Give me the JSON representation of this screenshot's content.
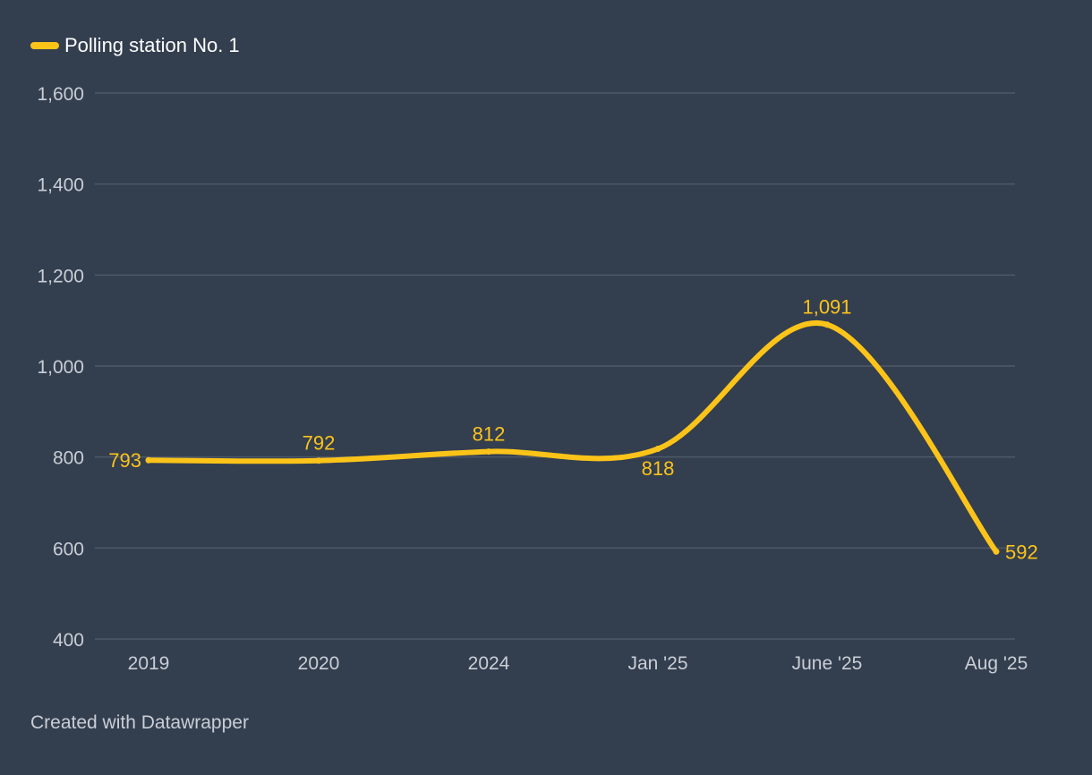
{
  "footer_text": "Created with Datawrapper",
  "colors": {
    "background": "#333e4f",
    "line": "#fcc419",
    "gridline": "#4e5869",
    "axis_text": "#c9ced6",
    "legend_text": "#ffffff"
  },
  "chart_data": {
    "type": "line",
    "title": "",
    "xlabel": "",
    "ylabel": "",
    "categories": [
      "2019",
      "2020",
      "2024",
      "Jan '25",
      "June '25",
      "Aug '25"
    ],
    "ylim": [
      400,
      1600
    ],
    "yticks": [
      400,
      600,
      800,
      1000,
      1200,
      1400,
      1600
    ],
    "ytick_labels": [
      "400",
      "600",
      "800",
      "1,000",
      "1,200",
      "1,400",
      "1,600"
    ],
    "grid": true,
    "legend_position": "top-left",
    "series": [
      {
        "name": "Polling station No. 1",
        "values": [
          793,
          792,
          812,
          818,
          1091,
          592
        ],
        "labels": [
          "793",
          "792",
          "812",
          "818",
          "1,091",
          "592"
        ]
      }
    ]
  }
}
